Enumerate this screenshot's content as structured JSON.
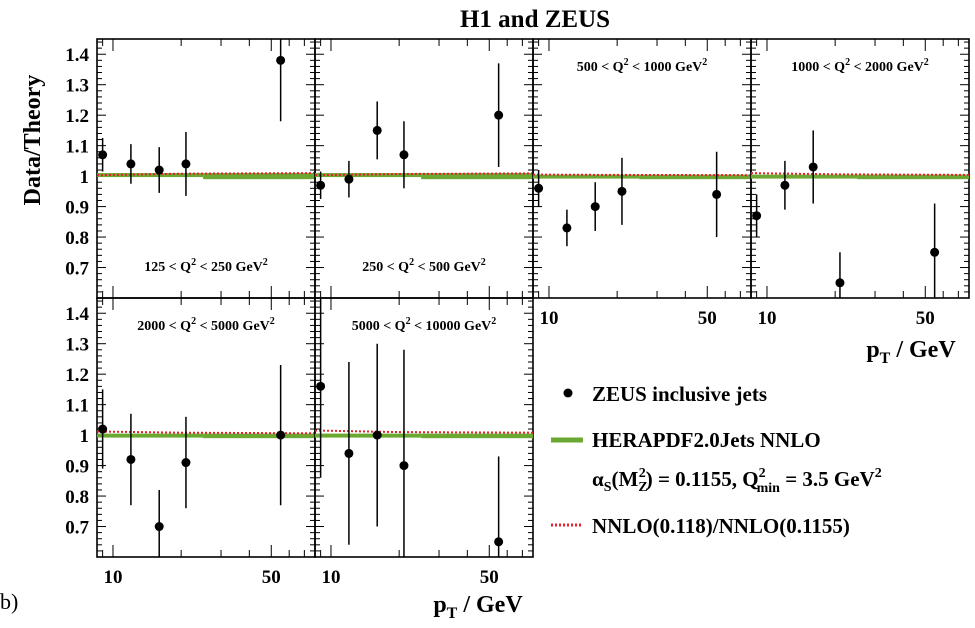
{
  "figure": {
    "title": "H1 and ZEUS",
    "ylabel": "Data/Theory",
    "xlabel_main": "p",
    "xlabel_sub": "T",
    "xlabel_unit": " / GeV",
    "panel_tag": "b)"
  },
  "legend": {
    "data_label": "ZEUS inclusive jets",
    "band_label": "HERAPDF2.0Jets NNLO",
    "alpha_alpha": "α",
    "alpha_S": "S",
    "alpha_M": "(M",
    "alpha_Z": "Z",
    "alpha_2": "2",
    "alpha_rest": ") = 0.1155, Q",
    "alpha_q2": "2",
    "alpha_min": "min",
    "alpha_tail": " = 3.5 GeV",
    "alpha_gev2": "2",
    "ratio_label": "NNLO(0.118)/NNLO(0.1155)"
  },
  "colors": {
    "band": "#6aa832",
    "ratio": "#e8202a",
    "points": "#000000"
  },
  "chart_data": {
    "type": "scatter",
    "x_scale": "log",
    "xlim": [
      8.5,
      78
    ],
    "ylim": [
      0.6,
      1.45
    ],
    "y_ticks": [
      0.7,
      0.8,
      0.9,
      1,
      1.1,
      1.2,
      1.3,
      1.4
    ],
    "y_tick_labels": [
      "0.7",
      "0.8",
      "0.9",
      "1",
      "1.1",
      "1.2",
      "1.3",
      "1.4"
    ],
    "x_ticks": [
      10,
      50
    ],
    "x_tick_labels": [
      "10",
      "50"
    ],
    "series": [
      {
        "name": "ZEUS inclusive jets"
      },
      {
        "name": "HERAPDF2.0Jets NNLO"
      },
      {
        "name": "NNLO(0.118)/NNLO(0.1155)"
      }
    ],
    "panels": [
      {
        "label_lo": "125 < Q",
        "label_hi": " < 250 GeV",
        "sup": "2",
        "label_pos": "bottom",
        "x": [
          9,
          12,
          16,
          21,
          55
        ],
        "y": [
          1.07,
          1.04,
          1.02,
          1.04,
          1.38
        ],
        "err": [
          0.055,
          0.065,
          0.075,
          0.105,
          0.2
        ],
        "band": [
          [
            8.5,
            25,
            1.0,
            1.01
          ],
          [
            25,
            78,
            0.99,
            1.01
          ]
        ],
        "ratio": [
          [
            8.5,
            1.003
          ],
          [
            20,
            1.008
          ],
          [
            78,
            1.01
          ]
        ]
      },
      {
        "label_lo": "250 < Q",
        "label_hi": " < 500 GeV",
        "sup": "2",
        "label_pos": "bottom",
        "x": [
          9,
          12,
          16,
          21,
          55
        ],
        "y": [
          0.97,
          0.99,
          1.15,
          1.07,
          1.2
        ],
        "err": [
          0.045,
          0.06,
          0.095,
          0.11,
          0.17
        ],
        "band": [
          [
            8.5,
            25,
            1.0,
            1.01
          ],
          [
            25,
            78,
            0.99,
            1.01
          ]
        ],
        "ratio": [
          [
            8.5,
            1.003
          ],
          [
            20,
            1.007
          ],
          [
            78,
            1.009
          ]
        ]
      },
      {
        "label_lo": "500 < Q",
        "label_hi": " < 1000 GeV",
        "sup": "2",
        "label_pos": "top",
        "x": [
          9,
          12,
          16,
          21,
          55
        ],
        "y": [
          0.96,
          0.83,
          0.9,
          0.95,
          0.94
        ],
        "err": [
          0.06,
          0.06,
          0.08,
          0.11,
          0.14
        ],
        "band": [
          [
            8.5,
            25,
            0.995,
            1.005
          ],
          [
            25,
            78,
            0.99,
            1.005
          ]
        ],
        "ratio": [
          [
            8.5,
            1.005
          ],
          [
            20,
            1.004
          ],
          [
            78,
            1.003
          ]
        ]
      },
      {
        "label_lo": "1000 < Q",
        "label_hi": " < 2000 GeV",
        "sup": "2",
        "label_pos": "top",
        "x": [
          9,
          12,
          16,
          21,
          55
        ],
        "y": [
          0.87,
          0.97,
          1.03,
          0.65,
          0.75
        ],
        "err": [
          0.07,
          0.08,
          0.12,
          0.1,
          0.16
        ],
        "band": [
          [
            8.5,
            25,
            0.995,
            1.005
          ],
          [
            25,
            78,
            0.99,
            1.005
          ]
        ],
        "ratio": [
          [
            8.5,
            1.01
          ],
          [
            20,
            1.006
          ],
          [
            78,
            1.004
          ]
        ]
      },
      {
        "label_lo": "2000 < Q",
        "label_hi": " < 5000 GeV",
        "sup": "2",
        "label_pos": "top",
        "x": [
          9,
          12,
          16,
          21,
          55
        ],
        "y": [
          1.02,
          0.92,
          0.7,
          0.91,
          1.0
        ],
        "err": [
          0.13,
          0.15,
          0.12,
          0.15,
          0.23
        ],
        "band": [
          [
            8.5,
            25,
            0.995,
            1.005
          ],
          [
            25,
            78,
            0.99,
            1.005
          ]
        ],
        "ratio": [
          [
            8.5,
            1.012
          ],
          [
            20,
            1.008
          ],
          [
            78,
            1.006
          ]
        ]
      },
      {
        "label_lo": "5000 < Q",
        "label_hi": " < 10000 GeV",
        "sup": "2",
        "label_pos": "top",
        "x": [
          9,
          12,
          16,
          21,
          55
        ],
        "y": [
          1.16,
          0.94,
          1.0,
          0.9,
          0.65
        ],
        "err": [
          0.3,
          0.3,
          0.3,
          0.38,
          0.28
        ],
        "band": [
          [
            8.5,
            25,
            0.995,
            1.005
          ],
          [
            25,
            78,
            0.99,
            1.005
          ]
        ],
        "ratio": [
          [
            8.5,
            1.015
          ],
          [
            20,
            1.01
          ],
          [
            78,
            1.008
          ]
        ]
      }
    ]
  }
}
